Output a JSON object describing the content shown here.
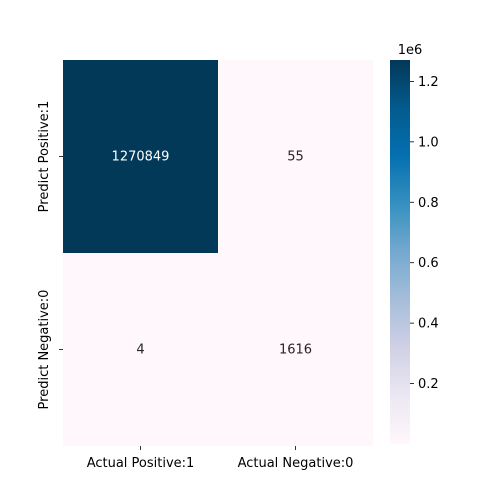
{
  "chart_data": {
    "type": "heatmap",
    "x_categories": [
      "Actual Positive:1",
      "Actual Negative:0"
    ],
    "y_categories": [
      "Predict Positive:1",
      "Predict Negative:0"
    ],
    "values": [
      [
        1270849,
        55
      ],
      [
        4,
        1616
      ]
    ],
    "annotations": [
      [
        "1270849",
        "55"
      ],
      [
        "4",
        "1616"
      ]
    ],
    "colormap": "PuBu",
    "colorbar": {
      "min": 4,
      "max": 1270849,
      "ticks": [
        0.2,
        0.4,
        0.6,
        0.8,
        1.0,
        1.2
      ],
      "tick_labels": [
        "0.2",
        "0.4",
        "0.6",
        "0.8",
        "1.0",
        "1.2"
      ],
      "offset_label": "1e6"
    },
    "colors": {
      "high": "#023858",
      "low": "#fff7fb",
      "annotation_on_dark": "#ffffff",
      "annotation_on_light": "#262626"
    }
  }
}
